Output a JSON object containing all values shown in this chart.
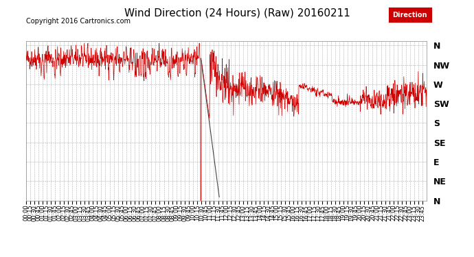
{
  "title": "Wind Direction (24 Hours) (Raw) 20160211",
  "copyright": "Copyright 2016 Cartronics.com",
  "legend_label": "Direction",
  "legend_color": "#cc0000",
  "line_color_red": "#cc0000",
  "line_color_dark": "#444444",
  "background_color": "#ffffff",
  "grid_color": "#999999",
  "ytick_labels": [
    "N",
    "NW",
    "W",
    "SW",
    "S",
    "SE",
    "E",
    "NE",
    "N"
  ],
  "ytick_values": [
    360,
    315,
    270,
    225,
    180,
    135,
    90,
    45,
    0
  ],
  "total_minutes": 1440,
  "title_fontsize": 11,
  "tick_fontsize": 7,
  "copyright_fontsize": 7
}
